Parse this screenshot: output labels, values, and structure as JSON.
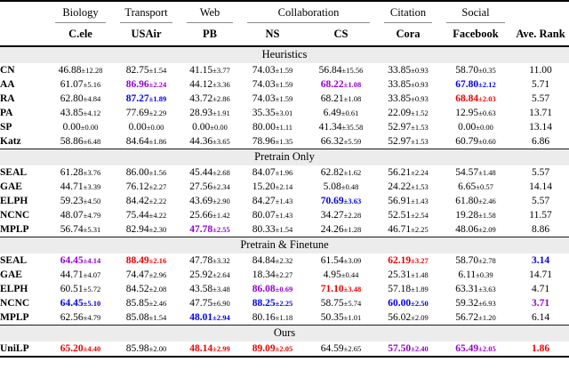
{
  "colors": {
    "best": "#ee0000",
    "second": "#0000ee",
    "third": "#9400d3",
    "section_band": "#ececec",
    "rule": "#000000",
    "cmidrule": "#8a8a8a"
  },
  "header": {
    "groups": [
      {
        "label": "Biology",
        "span": 1
      },
      {
        "label": "Transport",
        "span": 1
      },
      {
        "label": "Web",
        "span": 1
      },
      {
        "label": "Collaboration",
        "span": 2
      },
      {
        "label": "Citation",
        "span": 1
      },
      {
        "label": "Social",
        "span": 1
      }
    ],
    "datasets": [
      "C.ele",
      "USAir",
      "PB",
      "NS",
      "CS",
      "Cora",
      "Facebook"
    ],
    "rank_label": "Ave. Rank"
  },
  "sections": [
    {
      "title": "Heuristics",
      "rows": [
        {
          "method": "CN",
          "cells": [
            {
              "v": "46.88",
              "sd": "12.28"
            },
            {
              "v": "82.75",
              "sd": "1.54"
            },
            {
              "v": "41.15",
              "sd": "3.77"
            },
            {
              "v": "74.03",
              "sd": "1.59"
            },
            {
              "v": "56.84",
              "sd": "15.56"
            },
            {
              "v": "33.85",
              "sd": "0.93"
            },
            {
              "v": "58.70",
              "sd": "0.35"
            }
          ],
          "rank": {
            "v": "11.00"
          }
        },
        {
          "method": "AA",
          "cells": [
            {
              "v": "61.07",
              "sd": "5.16"
            },
            {
              "v": "86.96",
              "sd": "2.24",
              "hl": "third"
            },
            {
              "v": "44.12",
              "sd": "3.36"
            },
            {
              "v": "74.03",
              "sd": "1.59"
            },
            {
              "v": "68.22",
              "sd": "1.08",
              "hl": "third"
            },
            {
              "v": "33.85",
              "sd": "0.93"
            },
            {
              "v": "67.80",
              "sd": "2.12",
              "hl": "second"
            }
          ],
          "rank": {
            "v": "5.71"
          }
        },
        {
          "method": "RA",
          "cells": [
            {
              "v": "62.80",
              "sd": "4.84"
            },
            {
              "v": "87.27",
              "sd": "1.89",
              "hl": "second"
            },
            {
              "v": "43.72",
              "sd": "2.86"
            },
            {
              "v": "74.03",
              "sd": "1.59"
            },
            {
              "v": "68.21",
              "sd": "1.08"
            },
            {
              "v": "33.85",
              "sd": "0.93"
            },
            {
              "v": "68.84",
              "sd": "2.03",
              "hl": "best"
            }
          ],
          "rank": {
            "v": "5.57"
          }
        },
        {
          "method": "PA",
          "cells": [
            {
              "v": "43.85",
              "sd": "4.12"
            },
            {
              "v": "77.69",
              "sd": "2.29"
            },
            {
              "v": "28.93",
              "sd": "1.91"
            },
            {
              "v": "35.35",
              "sd": "3.01"
            },
            {
              "v": "6.49",
              "sd": "0.61"
            },
            {
              "v": "22.09",
              "sd": "1.52"
            },
            {
              "v": "12.95",
              "sd": "0.63"
            }
          ],
          "rank": {
            "v": "13.71"
          }
        },
        {
          "method": "SP",
          "cells": [
            {
              "v": "0.00",
              "sd": "0.00"
            },
            {
              "v": "0.00",
              "sd": "0.00"
            },
            {
              "v": "0.00",
              "sd": "0.00"
            },
            {
              "v": "80.00",
              "sd": "1.11"
            },
            {
              "v": "41.34",
              "sd": "35.58"
            },
            {
              "v": "52.97",
              "sd": "1.53"
            },
            {
              "v": "0.00",
              "sd": "0.00"
            }
          ],
          "rank": {
            "v": "13.14"
          }
        },
        {
          "method": "Katz",
          "cells": [
            {
              "v": "58.86",
              "sd": "6.48"
            },
            {
              "v": "84.64",
              "sd": "1.86"
            },
            {
              "v": "44.36",
              "sd": "3.65"
            },
            {
              "v": "78.96",
              "sd": "1.35"
            },
            {
              "v": "66.32",
              "sd": "5.59"
            },
            {
              "v": "52.97",
              "sd": "1.53"
            },
            {
              "v": "60.79",
              "sd": "0.60"
            }
          ],
          "rank": {
            "v": "6.86"
          }
        }
      ]
    },
    {
      "title": "Pretrain Only",
      "rows": [
        {
          "method": "SEAL",
          "cells": [
            {
              "v": "61.28",
              "sd": "3.76"
            },
            {
              "v": "86.00",
              "sd": "1.56"
            },
            {
              "v": "45.44",
              "sd": "2.68"
            },
            {
              "v": "84.07",
              "sd": "1.96"
            },
            {
              "v": "62.82",
              "sd": "1.62"
            },
            {
              "v": "56.21",
              "sd": "2.24"
            },
            {
              "v": "54.57",
              "sd": "1.48"
            }
          ],
          "rank": {
            "v": "5.57"
          }
        },
        {
          "method": "GAE",
          "cells": [
            {
              "v": "44.71",
              "sd": "3.39"
            },
            {
              "v": "76.12",
              "sd": "2.27"
            },
            {
              "v": "27.56",
              "sd": "2.34"
            },
            {
              "v": "15.20",
              "sd": "2.14"
            },
            {
              "v": "5.08",
              "sd": "0.48"
            },
            {
              "v": "24.22",
              "sd": "1.53"
            },
            {
              "v": "6.65",
              "sd": "0.57"
            }
          ],
          "rank": {
            "v": "14.14"
          }
        },
        {
          "method": "ELPH",
          "cells": [
            {
              "v": "59.23",
              "sd": "4.50"
            },
            {
              "v": "84.42",
              "sd": "2.22"
            },
            {
              "v": "43.69",
              "sd": "2.90"
            },
            {
              "v": "84.27",
              "sd": "1.43"
            },
            {
              "v": "70.69",
              "sd": "3.63",
              "hl": "second"
            },
            {
              "v": "56.91",
              "sd": "1.43"
            },
            {
              "v": "61.80",
              "sd": "2.46"
            }
          ],
          "rank": {
            "v": "5.57"
          }
        },
        {
          "method": "NCNC",
          "cells": [
            {
              "v": "48.07",
              "sd": "4.79"
            },
            {
              "v": "75.44",
              "sd": "4.22"
            },
            {
              "v": "25.66",
              "sd": "1.42"
            },
            {
              "v": "80.07",
              "sd": "1.43"
            },
            {
              "v": "34.27",
              "sd": "2.28"
            },
            {
              "v": "52.51",
              "sd": "2.54"
            },
            {
              "v": "19.28",
              "sd": "1.58"
            }
          ],
          "rank": {
            "v": "11.57"
          }
        },
        {
          "method": "MPLP",
          "cells": [
            {
              "v": "56.74",
              "sd": "5.31"
            },
            {
              "v": "82.94",
              "sd": "2.30"
            },
            {
              "v": "47.78",
              "sd": "2.55",
              "hl": "third"
            },
            {
              "v": "80.33",
              "sd": "1.54"
            },
            {
              "v": "24.26",
              "sd": "1.28"
            },
            {
              "v": "46.71",
              "sd": "2.25"
            },
            {
              "v": "48.06",
              "sd": "2.09"
            }
          ],
          "rank": {
            "v": "8.86"
          }
        }
      ]
    },
    {
      "title": "Pretrain & Finetune",
      "rows": [
        {
          "method": "SEAL",
          "cells": [
            {
              "v": "64.45",
              "sd": "4.14",
              "hl": "third"
            },
            {
              "v": "88.49",
              "sd": "2.16",
              "hl": "best"
            },
            {
              "v": "47.78",
              "sd": "3.32"
            },
            {
              "v": "84.84",
              "sd": "2.32"
            },
            {
              "v": "61.54",
              "sd": "3.09"
            },
            {
              "v": "62.19",
              "sd": "3.27",
              "hl": "best"
            },
            {
              "v": "58.70",
              "sd": "2.78"
            }
          ],
          "rank": {
            "v": "3.14",
            "hl": "second"
          }
        },
        {
          "method": "GAE",
          "cells": [
            {
              "v": "44.71",
              "sd": "4.07"
            },
            {
              "v": "74.47",
              "sd": "2.96"
            },
            {
              "v": "25.92",
              "sd": "2.64"
            },
            {
              "v": "18.34",
              "sd": "2.27"
            },
            {
              "v": "4.95",
              "sd": "0.44"
            },
            {
              "v": "25.31",
              "sd": "1.48"
            },
            {
              "v": "6.11",
              "sd": "0.39"
            }
          ],
          "rank": {
            "v": "14.71"
          }
        },
        {
          "method": "ELPH",
          "cells": [
            {
              "v": "60.51",
              "sd": "5.72"
            },
            {
              "v": "84.52",
              "sd": "2.08"
            },
            {
              "v": "43.58",
              "sd": "3.48"
            },
            {
              "v": "86.08",
              "sd": "0.69",
              "hl": "third"
            },
            {
              "v": "71.10",
              "sd": "3.48",
              "hl": "best"
            },
            {
              "v": "57.18",
              "sd": "1.89"
            },
            {
              "v": "63.31",
              "sd": "3.63"
            }
          ],
          "rank": {
            "v": "4.71"
          }
        },
        {
          "method": "NCNC",
          "cells": [
            {
              "v": "64.45",
              "sd": "5.10",
              "hl": "second"
            },
            {
              "v": "85.85",
              "sd": "2.46"
            },
            {
              "v": "47.75",
              "sd": "6.90"
            },
            {
              "v": "88.25",
              "sd": "2.25",
              "hl": "second"
            },
            {
              "v": "58.75",
              "sd": "5.74"
            },
            {
              "v": "60.00",
              "sd": "2.50",
              "hl": "second"
            },
            {
              "v": "59.32",
              "sd": "6.93"
            }
          ],
          "rank": {
            "v": "3.71",
            "hl": "third"
          }
        },
        {
          "method": "MPLP",
          "cells": [
            {
              "v": "62.56",
              "sd": "4.79"
            },
            {
              "v": "85.08",
              "sd": "1.54"
            },
            {
              "v": "48.01",
              "sd": "2.94",
              "hl": "second"
            },
            {
              "v": "80.16",
              "sd": "1.18"
            },
            {
              "v": "50.35",
              "sd": "1.01"
            },
            {
              "v": "56.02",
              "sd": "2.09"
            },
            {
              "v": "56.72",
              "sd": "1.20"
            }
          ],
          "rank": {
            "v": "6.14"
          }
        }
      ]
    },
    {
      "title": "Ours",
      "rows": [
        {
          "method": "UniLP",
          "cells": [
            {
              "v": "65.20",
              "sd": "4.40",
              "hl": "best"
            },
            {
              "v": "85.98",
              "sd": "2.00"
            },
            {
              "v": "48.14",
              "sd": "2.99",
              "hl": "best"
            },
            {
              "v": "89.09",
              "sd": "2.05",
              "hl": "best"
            },
            {
              "v": "64.59",
              "sd": "2.65"
            },
            {
              "v": "57.50",
              "sd": "2.40",
              "hl": "third"
            },
            {
              "v": "65.49",
              "sd": "2.05",
              "hl": "third"
            }
          ],
          "rank": {
            "v": "1.86",
            "hl": "best"
          }
        }
      ]
    }
  ]
}
